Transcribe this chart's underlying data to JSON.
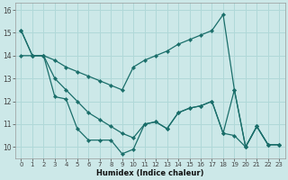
{
  "xlabel": "Humidex (Indice chaleur)",
  "bg_color": "#cce8e8",
  "line_color": "#1a6e6a",
  "grid_color": "#b0d8d8",
  "xlim": [
    -0.5,
    23.5
  ],
  "ylim": [
    9.5,
    16.3
  ],
  "yticks": [
    10,
    11,
    12,
    13,
    14,
    15,
    16
  ],
  "xticks": [
    0,
    1,
    2,
    3,
    4,
    5,
    6,
    7,
    8,
    9,
    10,
    11,
    12,
    13,
    14,
    15,
    16,
    17,
    18,
    19,
    20,
    21,
    22,
    23
  ],
  "series": [
    {
      "x": [
        0,
        1,
        2,
        3,
        4,
        5,
        6,
        7,
        8,
        9,
        10,
        11,
        12,
        13,
        14,
        15,
        16,
        17,
        18,
        19,
        20,
        21,
        22,
        23
      ],
      "y": [
        15.1,
        14.0,
        14.0,
        13.8,
        13.5,
        13.3,
        13.1,
        12.9,
        12.7,
        12.5,
        13.5,
        13.8,
        14.0,
        14.2,
        14.5,
        14.7,
        14.9,
        15.1,
        15.8,
        12.5,
        10.0,
        10.9,
        10.1,
        10.1
      ]
    },
    {
      "x": [
        0,
        1,
        2,
        3,
        4,
        5,
        6,
        7,
        8,
        9,
        10,
        11,
        12,
        13,
        14,
        15,
        16,
        17,
        18,
        19,
        20,
        21,
        22,
        23
      ],
      "y": [
        14.0,
        14.0,
        14.0,
        13.0,
        12.5,
        12.0,
        11.5,
        11.2,
        10.9,
        10.6,
        10.4,
        11.0,
        11.1,
        10.8,
        11.5,
        11.7,
        11.8,
        12.0,
        10.6,
        12.5,
        10.0,
        10.9,
        10.1,
        10.1
      ]
    },
    {
      "x": [
        0,
        1,
        2,
        3,
        4,
        5,
        6,
        7,
        8,
        9,
        10,
        11,
        12,
        13,
        14,
        15,
        16,
        17,
        18,
        19,
        20,
        21,
        22,
        23
      ],
      "y": [
        15.1,
        14.0,
        14.0,
        12.2,
        12.1,
        10.8,
        10.3,
        10.3,
        10.3,
        9.7,
        9.9,
        11.0,
        11.1,
        10.8,
        11.5,
        11.7,
        11.8,
        12.0,
        10.6,
        10.5,
        10.0,
        10.9,
        10.1,
        10.1
      ]
    }
  ]
}
